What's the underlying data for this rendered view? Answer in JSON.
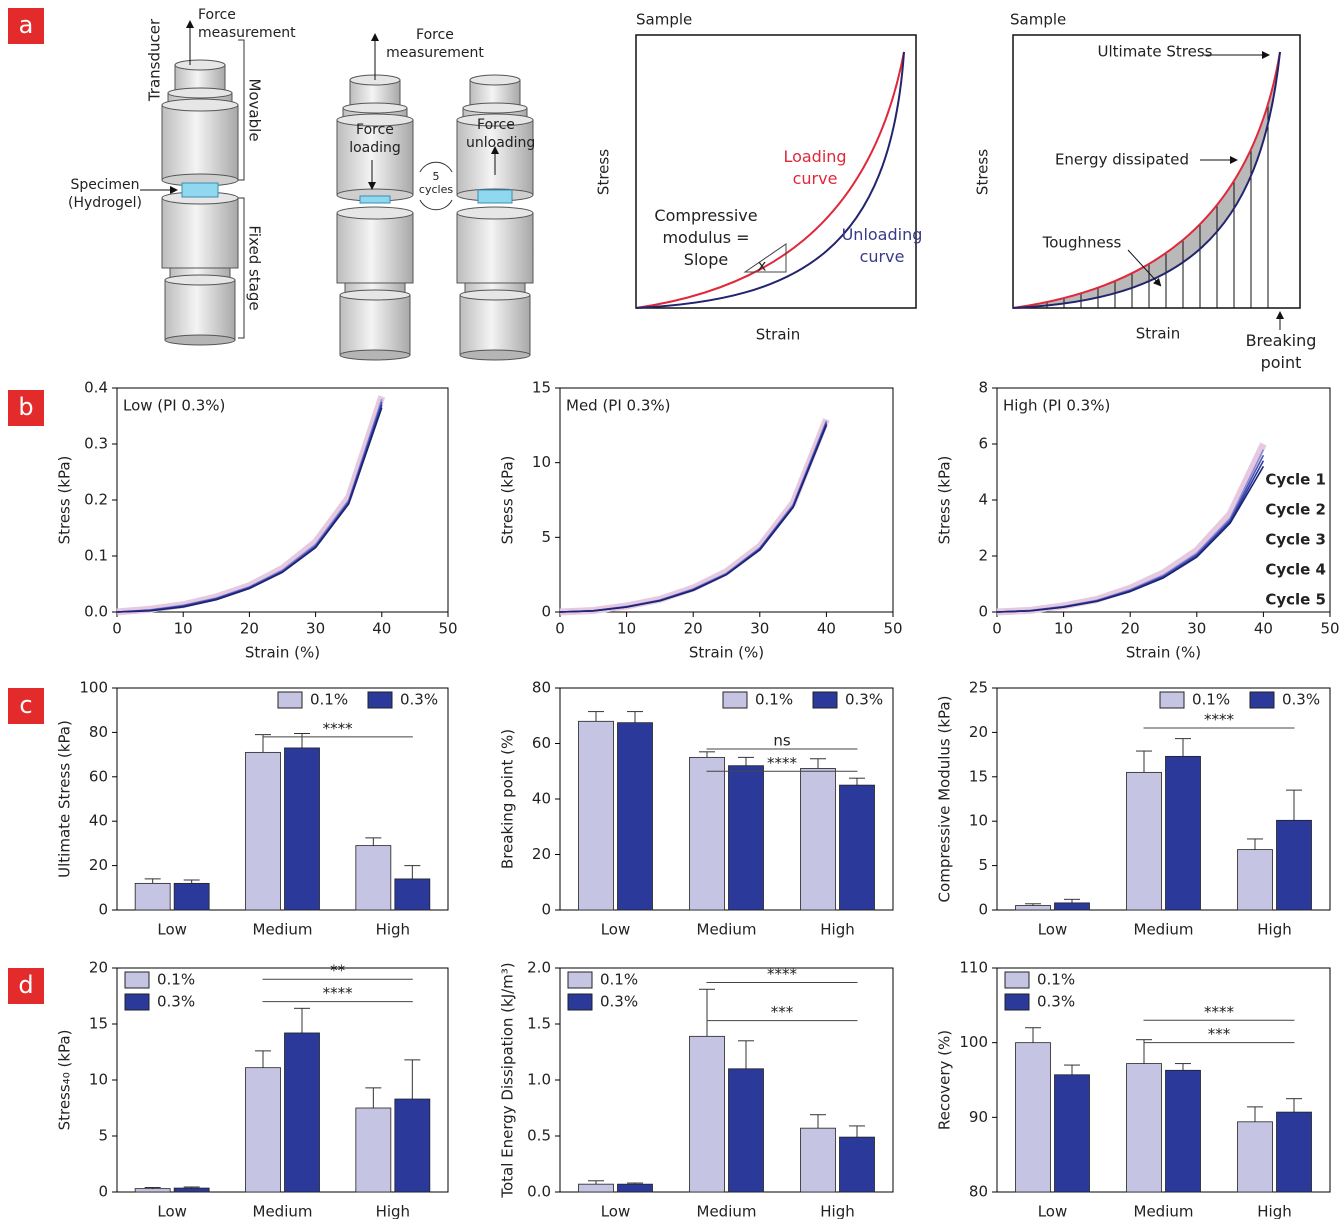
{
  "panel_labels": [
    "a",
    "b",
    "c",
    "d"
  ],
  "diagram": {
    "setup": {
      "transducer": "Transducer",
      "force_measurement": "Force measurement",
      "movable": "Movable",
      "specimen": "Specimen (Hydrogel)",
      "fixed_stage": "Fixed stage"
    },
    "cycle": {
      "force_measurement": "Force measurement",
      "force_loading": "Force loading",
      "cycles": "5 cycles",
      "force_unloading": "Force unloading"
    },
    "modulus_plot": {
      "title": "Sample",
      "ylabel": "Stress",
      "xlabel": "Strain",
      "loading": "Loading curve",
      "unloading": "Unloading curve",
      "modulus": "Compressive modulus = Slope",
      "x": "x"
    },
    "toughness_plot": {
      "title": "Sample",
      "ylabel": "Stress",
      "xlabel": "Strain",
      "ultimate": "Ultimate Stress",
      "energy": "Energy dissipated",
      "toughness": "Toughness",
      "breaking": "Breaking point"
    }
  },
  "chart_data": [
    {
      "type": "line",
      "annotation": "Low (PI 0.3%)",
      "xlabel": "Strain (%)",
      "ylabel": "Stress (kPa)",
      "xlim": [
        0,
        50
      ],
      "xticks": [
        0,
        10,
        20,
        30,
        40,
        50
      ],
      "ylim": [
        0,
        0.4
      ],
      "yticks": [
        {
          "value": 0,
          "label": "0.0"
        },
        0.1,
        0.2,
        0.3,
        0.4
      ],
      "x": [
        0,
        5,
        10,
        15,
        20,
        25,
        30,
        35,
        40
      ],
      "series": [
        {
          "color": "#e6c9e0",
          "values": [
            0,
            0.005,
            0.013,
            0.027,
            0.047,
            0.078,
            0.125,
            0.205,
            0.385
          ]
        },
        {
          "color": "#8c8cd0",
          "values": [
            0,
            0.004,
            0.012,
            0.025,
            0.045,
            0.075,
            0.121,
            0.2,
            0.38
          ]
        },
        {
          "color": "#4a56b8",
          "values": [
            0,
            0.003,
            0.011,
            0.024,
            0.044,
            0.073,
            0.118,
            0.197,
            0.375
          ]
        },
        {
          "color": "#2e3aa6",
          "values": [
            0,
            0.003,
            0.01,
            0.023,
            0.043,
            0.072,
            0.116,
            0.195,
            0.37
          ]
        },
        {
          "color": "#1c2470",
          "values": [
            0,
            0.002,
            0.009,
            0.022,
            0.042,
            0.071,
            0.115,
            0.193,
            0.365
          ]
        }
      ]
    },
    {
      "type": "line",
      "annotation": "Med (PI 0.3%)",
      "xlabel": "Strain (%)",
      "ylabel": "Stress (kPa)",
      "xlim": [
        0,
        50
      ],
      "xticks": [
        0,
        10,
        20,
        30,
        40,
        50
      ],
      "ylim": [
        0,
        15
      ],
      "yticks": [
        0,
        5,
        10,
        15
      ],
      "x": [
        0,
        5,
        10,
        15,
        20,
        25,
        30,
        35,
        40
      ],
      "series": [
        {
          "color": "#e6c9e0",
          "values": [
            0,
            0.1,
            0.4,
            0.85,
            1.6,
            2.7,
            4.4,
            7.3,
            12.9
          ]
        },
        {
          "color": "#8c8cd0",
          "values": [
            0,
            0.09,
            0.37,
            0.8,
            1.55,
            2.6,
            4.3,
            7.2,
            12.8
          ]
        },
        {
          "color": "#4a56b8",
          "values": [
            0,
            0.08,
            0.35,
            0.78,
            1.5,
            2.55,
            4.25,
            7.1,
            12.7
          ]
        },
        {
          "color": "#2e3aa6",
          "values": [
            0,
            0.08,
            0.34,
            0.77,
            1.48,
            2.52,
            4.2,
            7.05,
            12.6
          ]
        },
        {
          "color": "#1c2470",
          "values": [
            0,
            0.07,
            0.33,
            0.75,
            1.45,
            2.5,
            4.15,
            7.0,
            12.5
          ]
        }
      ]
    },
    {
      "type": "line",
      "annotation": "High (PI 0.3%)",
      "xlabel": "Strain (%)",
      "ylabel": "Stress (kPa)",
      "xlim": [
        0,
        50
      ],
      "xticks": [
        0,
        10,
        20,
        30,
        40,
        50
      ],
      "ylim": [
        0,
        8
      ],
      "yticks": [
        0,
        2,
        4,
        6,
        8
      ],
      "legend": "right",
      "x": [
        0,
        5,
        10,
        15,
        20,
        25,
        30,
        35,
        40
      ],
      "series": [
        {
          "name": "Cycle 1",
          "color": "#e6c9e0",
          "values": [
            0,
            0.06,
            0.22,
            0.45,
            0.85,
            1.4,
            2.2,
            3.5,
            6.0
          ]
        },
        {
          "name": "Cycle 2",
          "color": "#8c8cd0",
          "values": [
            0,
            0.05,
            0.2,
            0.42,
            0.8,
            1.32,
            2.1,
            3.35,
            5.8
          ]
        },
        {
          "name": "Cycle 3",
          "color": "#4a56b8",
          "values": [
            0,
            0.05,
            0.19,
            0.4,
            0.77,
            1.28,
            2.05,
            3.28,
            5.6
          ]
        },
        {
          "name": "Cycle 4",
          "color": "#2e3aa6",
          "values": [
            0,
            0.04,
            0.18,
            0.39,
            0.75,
            1.25,
            2.0,
            3.22,
            5.4
          ]
        },
        {
          "name": "Cycle 5",
          "color": "#1c2470",
          "values": [
            0,
            0.04,
            0.17,
            0.38,
            0.73,
            1.22,
            1.96,
            3.17,
            5.2
          ]
        }
      ]
    },
    {
      "type": "bar",
      "ylabel": "Ultimate Stress (kPa)",
      "categories": [
        "Low",
        "Medium",
        "High"
      ],
      "ylim": [
        0,
        100
      ],
      "yticks": [
        0,
        20,
        40,
        60,
        80,
        100
      ],
      "legend": "upper right",
      "series": [
        {
          "name": "0.1%",
          "color": "#c5c5e3",
          "values": [
            12,
            71,
            29
          ],
          "errors": [
            2,
            8,
            3.5
          ]
        },
        {
          "name": "0.3%",
          "color": "#2b3a9a",
          "values": [
            12,
            73,
            14
          ],
          "errors": [
            1.5,
            6.5,
            6
          ]
        }
      ],
      "annotations": [
        {
          "text": "****",
          "y": 78,
          "x": [
            1,
            2
          ]
        }
      ]
    },
    {
      "type": "bar",
      "ylabel": "Breaking point (%)",
      "categories": [
        "Low",
        "Medium",
        "High"
      ],
      "ylim": [
        0,
        80
      ],
      "yticks": [
        0,
        20,
        40,
        60,
        80
      ],
      "legend": "upper right",
      "series": [
        {
          "name": "0.1%",
          "color": "#c5c5e3",
          "values": [
            68,
            55,
            51
          ],
          "errors": [
            3.5,
            2,
            3.5
          ]
        },
        {
          "name": "0.3%",
          "color": "#2b3a9a",
          "values": [
            67.5,
            52,
            45
          ],
          "errors": [
            4,
            3,
            2.5
          ]
        }
      ],
      "annotations": [
        {
          "text": "ns",
          "y": 58,
          "x": [
            1,
            2
          ]
        },
        {
          "text": "****",
          "y": 50,
          "x": [
            1,
            2
          ]
        }
      ]
    },
    {
      "type": "bar",
      "ylabel": "Compressive Modulus (kPa)",
      "categories": [
        "Low",
        "Medium",
        "High"
      ],
      "ylim": [
        0,
        25
      ],
      "yticks": [
        0,
        5,
        10,
        15,
        20,
        25
      ],
      "legend": "upper right",
      "series": [
        {
          "name": "0.1%",
          "color": "#c5c5e3",
          "values": [
            0.5,
            15.5,
            6.8
          ],
          "errors": [
            0.2,
            2.4,
            1.2
          ]
        },
        {
          "name": "0.3%",
          "color": "#2b3a9a",
          "values": [
            0.8,
            17.3,
            10.1
          ],
          "errors": [
            0.4,
            2.0,
            3.4
          ]
        }
      ],
      "annotations": [
        {
          "text": "****",
          "y": 20.5,
          "x": [
            1,
            2
          ]
        }
      ]
    },
    {
      "type": "bar",
      "ylabel": "Stress₄₀ (kPa)",
      "categories": [
        "Low",
        "Medium",
        "High"
      ],
      "ylim": [
        0,
        20
      ],
      "yticks": [
        0,
        5,
        10,
        15,
        20
      ],
      "legend": "upper left",
      "series": [
        {
          "name": "0.1%",
          "color": "#c5c5e3",
          "values": [
            0.3,
            11.1,
            7.5
          ],
          "errors": [
            0.1,
            1.5,
            1.8
          ]
        },
        {
          "name": "0.3%",
          "color": "#2b3a9a",
          "values": [
            0.35,
            14.2,
            8.3
          ],
          "errors": [
            0.1,
            2.2,
            3.5
          ]
        }
      ],
      "annotations": [
        {
          "text": "**",
          "y": 19,
          "x": [
            1,
            2
          ]
        },
        {
          "text": "****",
          "y": 17,
          "x": [
            1,
            2
          ]
        }
      ]
    },
    {
      "type": "bar",
      "ylabel": "Total Energy Dissipation (kJ/m³)",
      "categories": [
        "Low",
        "Medium",
        "High"
      ],
      "ylim": [
        0,
        2
      ],
      "yticks": [
        {
          "value": 0,
          "label": "0.0"
        },
        0.5,
        {
          "value": 1,
          "label": "1.0"
        },
        1.5,
        {
          "value": 2,
          "label": "2.0"
        }
      ],
      "legend": "upper left",
      "series": [
        {
          "name": "0.1%",
          "color": "#c5c5e3",
          "values": [
            0.07,
            1.39,
            0.57
          ],
          "errors": [
            0.03,
            0.42,
            0.12
          ]
        },
        {
          "name": "0.3%",
          "color": "#2b3a9a",
          "values": [
            0.07,
            1.1,
            0.49
          ],
          "errors": [
            0.01,
            0.25,
            0.1
          ]
        }
      ],
      "annotations": [
        {
          "text": "****",
          "y": 1.87,
          "x": [
            1,
            2
          ]
        },
        {
          "text": "***",
          "y": 1.53,
          "x": [
            1,
            2
          ]
        }
      ]
    },
    {
      "type": "bar",
      "ylabel": "Recovery (%)",
      "categories": [
        "Low",
        "Medium",
        "High"
      ],
      "ylim": [
        80,
        110
      ],
      "yticks": [
        80,
        90,
        100,
        110
      ],
      "legend": "upper left",
      "series": [
        {
          "name": "0.1%",
          "color": "#c5c5e3",
          "values": [
            100,
            97.2,
            89.4
          ],
          "errors": [
            2,
            3.2,
            2
          ]
        },
        {
          "name": "0.3%",
          "color": "#2b3a9a",
          "values": [
            95.7,
            96.3,
            90.7
          ],
          "errors": [
            1.3,
            0.9,
            1.8
          ]
        }
      ],
      "annotations": [
        {
          "text": "****",
          "y": 103,
          "x": [
            1,
            2
          ]
        },
        {
          "text": "***",
          "y": 100,
          "x": [
            1,
            2
          ]
        }
      ]
    }
  ]
}
